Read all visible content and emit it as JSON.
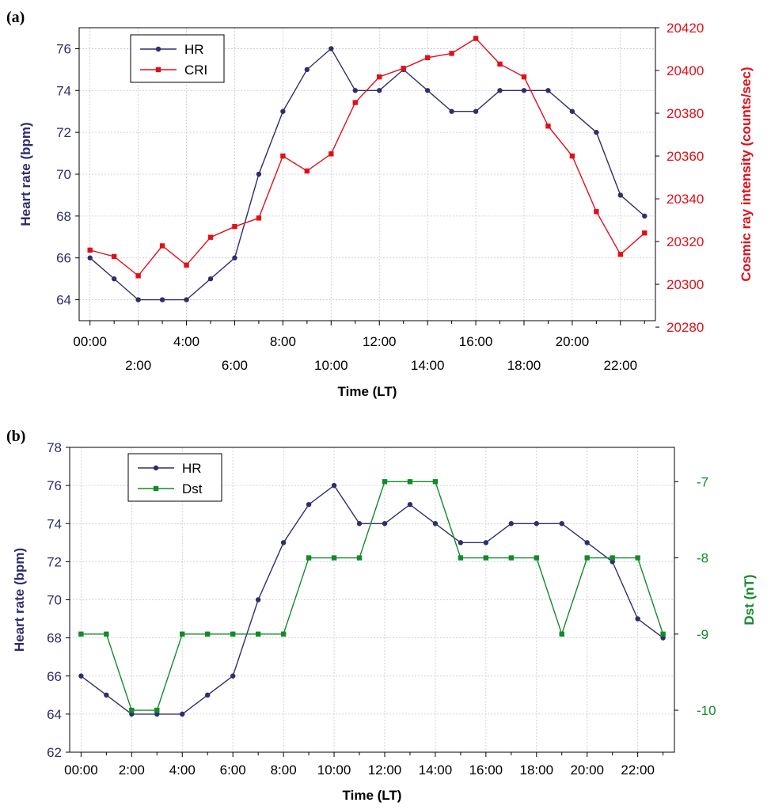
{
  "chart_data": [
    {
      "panel_label": "(a)",
      "type": "line",
      "xlabel": "Time (LT)",
      "x_ticks_row1": [
        "00:00",
        "4:00",
        "8:00",
        "12:00",
        "16:00",
        "20:00"
      ],
      "x_ticks_row2": [
        "2:00",
        "6:00",
        "10:00",
        "14:00",
        "18:00",
        "22:00"
      ],
      "x": [
        0,
        1,
        2,
        3,
        4,
        5,
        6,
        7,
        8,
        9,
        10,
        11,
        12,
        13,
        14,
        15,
        16,
        17,
        18,
        19,
        20,
        21,
        22,
        23
      ],
      "xlim": [
        -0.45,
        23.45
      ],
      "y_left": {
        "label": "Heart rate (bpm)",
        "lim": [
          63,
          77
        ],
        "ticks": [
          64,
          66,
          68,
          70,
          72,
          74,
          76
        ],
        "color": "#2e2e6e"
      },
      "y_right": {
        "label": "Cosmic ray intensity (counts/sec)",
        "lim": [
          20283,
          20420
        ],
        "ticks": [
          20280,
          20300,
          20320,
          20340,
          20360,
          20380,
          20400,
          20420
        ],
        "color": "#e0101a"
      },
      "series": [
        {
          "name": "HR",
          "axis": "left",
          "color": "#2e2e6e",
          "marker": "circle",
          "values": [
            66,
            65,
            64,
            64,
            64,
            65,
            66,
            70,
            73,
            75,
            76,
            74,
            74,
            75,
            74,
            73,
            73,
            74,
            74,
            74,
            73,
            72,
            69,
            68
          ]
        },
        {
          "name": "CRI",
          "axis": "right",
          "color": "#e0101a",
          "marker": "square",
          "values": [
            20316,
            20313,
            20304,
            20318,
            20309,
            20322,
            20327,
            20331,
            20360,
            20353,
            20361,
            20385,
            20397,
            20401,
            20406,
            20408,
            20415,
            20403,
            20397,
            20374,
            20360,
            20334,
            20314,
            20324
          ]
        }
      ],
      "grid": true,
      "legend": "top-left"
    },
    {
      "panel_label": "(b)",
      "type": "line",
      "xlabel": "Time (LT)",
      "x_ticks": [
        "00:00",
        "2:00",
        "4:00",
        "6:00",
        "8:00",
        "10:00",
        "12:00",
        "14:00",
        "16:00",
        "18:00",
        "20:00",
        "22:00"
      ],
      "x": [
        0,
        1,
        2,
        3,
        4,
        5,
        6,
        7,
        8,
        9,
        10,
        11,
        12,
        13,
        14,
        15,
        16,
        17,
        18,
        19,
        20,
        21,
        22,
        23
      ],
      "xlim": [
        -0.45,
        23.45
      ],
      "y_left": {
        "label": "Heart rate (bpm)",
        "lim": [
          62,
          78
        ],
        "ticks": [
          62,
          64,
          66,
          68,
          70,
          72,
          74,
          76,
          78
        ],
        "color": "#2e2e6e"
      },
      "y_right": {
        "label": "Dst (nT)",
        "lim": [
          -10.55,
          -6.55
        ],
        "ticks": [
          -10,
          -9,
          -8,
          -7
        ],
        "color": "#138a2a"
      },
      "series": [
        {
          "name": "HR",
          "axis": "left",
          "color": "#2e2e6e",
          "marker": "circle",
          "values": [
            66,
            65,
            64,
            64,
            64,
            65,
            66,
            70,
            73,
            75,
            76,
            74,
            74,
            75,
            74,
            73,
            73,
            74,
            74,
            74,
            73,
            72,
            69,
            68
          ]
        },
        {
          "name": "Dst",
          "axis": "right",
          "color": "#138a2a",
          "marker": "square",
          "values": [
            -9,
            -9,
            -10,
            -10,
            -9,
            -9,
            -9,
            -9,
            -9,
            -8,
            -8,
            -8,
            -7,
            -7,
            -7,
            -8,
            -8,
            -8,
            -8,
            -9,
            -8,
            -8,
            -8,
            -9
          ]
        }
      ],
      "grid": true,
      "legend": "top-left"
    }
  ]
}
